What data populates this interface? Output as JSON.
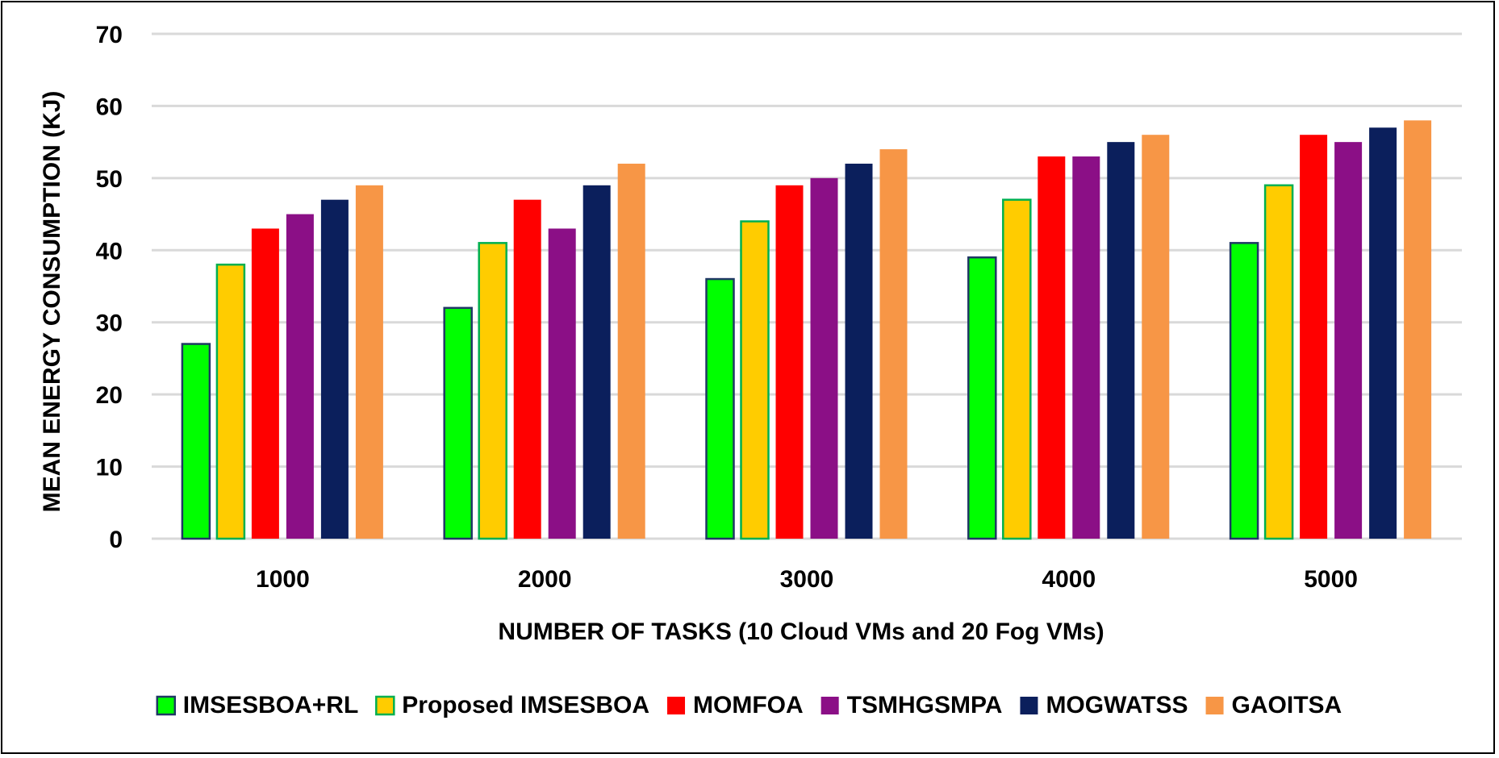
{
  "chart_data": {
    "type": "bar",
    "title": "",
    "xlabel": "NUMBER OF TASKS (10 Cloud VMs and 20 Fog VMs)",
    "ylabel": "MEAN ENERGY CONSUMPTION (KJ)",
    "ylim": [
      0,
      70
    ],
    "yticks": [
      0,
      10,
      20,
      30,
      40,
      50,
      60,
      70
    ],
    "grid": true,
    "legend_position": "bottom",
    "categories": [
      "1000",
      "2000",
      "3000",
      "4000",
      "5000"
    ],
    "series": [
      {
        "name": "IMSESBOA+RL",
        "color": "#00ff00",
        "stroke": "#1f3864",
        "values": [
          27,
          32,
          36,
          39,
          41
        ]
      },
      {
        "name": "Proposed IMSESBOA",
        "color": "#ffcc00",
        "stroke": "#00b050",
        "values": [
          38,
          41,
          44,
          47,
          49
        ]
      },
      {
        "name": "MOMFOA",
        "color": "#ff0000",
        "stroke": "none",
        "values": [
          43,
          47,
          49,
          53,
          56
        ]
      },
      {
        "name": "TSMHGSMPA",
        "color": "#8b0f86",
        "stroke": "none",
        "values": [
          45,
          43,
          50,
          53,
          55
        ]
      },
      {
        "name": "MOGWATSS",
        "color": "#0b1f5c",
        "stroke": "none",
        "values": [
          47,
          49,
          52,
          55,
          57
        ]
      },
      {
        "name": "GAOITSA",
        "color": "#f79646",
        "stroke": "none",
        "values": [
          49,
          52,
          54,
          56,
          58
        ]
      }
    ]
  }
}
